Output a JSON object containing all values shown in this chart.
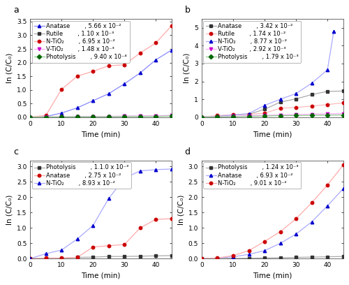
{
  "panels": [
    {
      "label": "a",
      "ylim": [
        0,
        3.6
      ],
      "yticks": [
        0.0,
        0.5,
        1.0,
        1.5,
        2.0,
        2.5,
        3.0,
        3.5
      ],
      "xlim": [
        0,
        45
      ],
      "xticks": [
        0,
        10,
        20,
        30,
        40
      ],
      "series": [
        {
          "name": "Anatase",
          "rate_str": ", 5.66 x 10⁻²",
          "mcolor": "#0000cc",
          "lcolor": "#8888ff",
          "marker": "^",
          "x": [
            0,
            5,
            10,
            15,
            20,
            25,
            30,
            35,
            40,
            45
          ],
          "y": [
            0.0,
            0.02,
            0.15,
            0.34,
            0.6,
            0.86,
            1.22,
            1.62,
            2.1,
            2.46
          ]
        },
        {
          "name": "Rutile",
          "rate_str": ", 1.10 x 10⁻³",
          "mcolor": "#333333",
          "lcolor": "#aaaaaa",
          "marker": "s",
          "x": [
            0,
            5,
            10,
            15,
            20,
            25,
            30,
            35,
            40,
            45
          ],
          "y": [
            0.0,
            0.005,
            0.01,
            0.015,
            0.02,
            0.025,
            0.03,
            0.035,
            0.04,
            0.05
          ]
        },
        {
          "name": "N-TiO₂",
          "rate_str": ", 6.95 x 10⁻²",
          "mcolor": "#cc0000",
          "lcolor": "#ffaaaa",
          "marker": "o",
          "x": [
            0,
            5,
            10,
            15,
            20,
            25,
            30,
            35,
            40,
            45
          ],
          "y": [
            0.0,
            0.06,
            1.02,
            1.5,
            1.68,
            1.88,
            1.92,
            2.35,
            2.72,
            3.35
          ]
        },
        {
          "name": "V-TiO₂",
          "rate_str": ", 1.48 x 10⁻³",
          "mcolor": "#cc00cc",
          "lcolor": "#ffaaff",
          "marker": "v",
          "x": [
            0,
            5,
            10,
            15,
            20,
            25,
            30,
            35,
            40,
            45
          ],
          "y": [
            0.0,
            0.005,
            0.01,
            0.015,
            0.02,
            0.028,
            0.035,
            0.042,
            0.05,
            0.06
          ]
        },
        {
          "name": "Photolysis",
          "rate_str": ", 9.40 x 10⁻⁴",
          "mcolor": "#006600",
          "lcolor": "#88cc88",
          "marker": "D",
          "x": [
            0,
            5,
            10,
            15,
            20,
            25,
            30,
            35,
            40,
            45
          ],
          "y": [
            0.0,
            0.002,
            0.004,
            0.006,
            0.008,
            0.012,
            0.016,
            0.02,
            0.025,
            0.04
          ]
        }
      ]
    },
    {
      "label": "b",
      "ylim": [
        0,
        5.5
      ],
      "yticks": [
        0,
        1,
        2,
        3,
        4,
        5
      ],
      "xlim": [
        0,
        45
      ],
      "xticks": [
        0,
        10,
        20,
        30,
        40
      ],
      "series": [
        {
          "name": "Anatase",
          "rate_str": ", 3.42 x 10⁻²",
          "mcolor": "#333333",
          "lcolor": "#aaaaaa",
          "marker": "s",
          "x": [
            0,
            5,
            10,
            15,
            20,
            25,
            30,
            35,
            40,
            45
          ],
          "y": [
            0.0,
            0.06,
            0.12,
            0.16,
            0.44,
            0.84,
            1.02,
            1.26,
            1.44,
            1.46
          ]
        },
        {
          "name": "Rutile",
          "rate_str": ", 1.74 x 10⁻²",
          "mcolor": "#cc0000",
          "lcolor": "#ffbbbb",
          "marker": "o",
          "x": [
            0,
            5,
            10,
            15,
            20,
            25,
            30,
            35,
            40,
            45
          ],
          "y": [
            0.0,
            0.09,
            0.13,
            0.16,
            0.22,
            0.5,
            0.54,
            0.62,
            0.7,
            0.8
          ]
        },
        {
          "name": "N-TiO₂",
          "rate_str": ", 8.77 x 10⁻²",
          "mcolor": "#0000cc",
          "lcolor": "#aaaaff",
          "marker": "^",
          "x": [
            0,
            5,
            10,
            15,
            20,
            25,
            30,
            35,
            40,
            42
          ],
          "y": [
            0.0,
            0.04,
            0.12,
            0.2,
            0.66,
            1.0,
            1.32,
            1.9,
            2.65,
            4.8
          ]
        },
        {
          "name": "V-TiO₂",
          "rate_str": ", 2.92 x 10⁻³",
          "mcolor": "#cc00cc",
          "lcolor": "#ffaaff",
          "marker": "v",
          "x": [
            0,
            5,
            10,
            15,
            20,
            25,
            30,
            35,
            40,
            45
          ],
          "y": [
            0.0,
            0.02,
            0.05,
            0.08,
            0.1,
            0.12,
            0.14,
            0.16,
            0.18,
            0.2
          ]
        },
        {
          "name": "Photolysis",
          "rate_str": ", 1.79 x 10⁻³",
          "mcolor": "#006600",
          "lcolor": "#88cc88",
          "marker": "D",
          "x": [
            0,
            5,
            10,
            15,
            20,
            25,
            30,
            35,
            40,
            45
          ],
          "y": [
            0.0,
            0.01,
            0.02,
            0.04,
            0.06,
            0.08,
            0.09,
            0.1,
            0.11,
            0.12
          ]
        }
      ]
    },
    {
      "label": "c",
      "ylim": [
        0,
        3.2
      ],
      "yticks": [
        0.0,
        0.5,
        1.0,
        1.5,
        2.0,
        2.5,
        3.0
      ],
      "xlim": [
        0,
        45
      ],
      "xticks": [
        0,
        10,
        20,
        30,
        40
      ],
      "series": [
        {
          "name": "Photolysis",
          "rate_str": ", 1.1.0 x 10⁻³",
          "mcolor": "#333333",
          "lcolor": "#aaaaaa",
          "marker": "s",
          "x": [
            0,
            5,
            10,
            15,
            20,
            25,
            30,
            35,
            40,
            45
          ],
          "y": [
            0.0,
            0.005,
            0.01,
            0.04,
            0.05,
            0.07,
            0.07,
            0.08,
            0.09,
            0.1
          ]
        },
        {
          "name": "Anatase",
          "rate_str": ", 2.75 x 10⁻²",
          "mcolor": "#cc0000",
          "lcolor": "#ffaaaa",
          "marker": "o",
          "x": [
            0,
            5,
            10,
            15,
            20,
            25,
            30,
            35,
            40,
            45
          ],
          "y": [
            0.0,
            0.02,
            0.02,
            0.04,
            0.38,
            0.42,
            0.46,
            1.0,
            1.28,
            1.3
          ]
        },
        {
          "name": "N-TiO₂",
          "rate_str": ", 8.93 x 10⁻²",
          "mcolor": "#0000cc",
          "lcolor": "#aaaaff",
          "marker": "^",
          "x": [
            0,
            5,
            10,
            15,
            20,
            25,
            30,
            35,
            40,
            45
          ],
          "y": [
            0.0,
            0.16,
            0.28,
            0.64,
            1.08,
            1.96,
            2.62,
            2.86,
            2.9,
            2.92
          ]
        }
      ]
    },
    {
      "label": "d",
      "ylim": [
        0,
        3.2
      ],
      "yticks": [
        0.0,
        0.5,
        1.0,
        1.5,
        2.0,
        2.5,
        3.0
      ],
      "xlim": [
        0,
        45
      ],
      "xticks": [
        0,
        10,
        20,
        30,
        40
      ],
      "series": [
        {
          "name": "Photolysis",
          "rate_str": ", 1.24 x 10⁻³",
          "mcolor": "#333333",
          "lcolor": "#aaaaaa",
          "marker": "s",
          "x": [
            0,
            5,
            10,
            15,
            20,
            25,
            30,
            35,
            40,
            45
          ],
          "y": [
            0.0,
            0.005,
            0.01,
            0.015,
            0.02,
            0.03,
            0.04,
            0.05,
            0.06,
            0.07
          ]
        },
        {
          "name": "Anatase",
          "rate_str": ", 6.93 x 10⁻²",
          "mcolor": "#0000cc",
          "lcolor": "#aaaaff",
          "marker": "^",
          "x": [
            0,
            5,
            10,
            15,
            20,
            25,
            30,
            35,
            40,
            45
          ],
          "y": [
            0.0,
            0.02,
            0.06,
            0.14,
            0.26,
            0.5,
            0.8,
            1.2,
            1.72,
            2.28
          ]
        },
        {
          "name": "N-TiO₂",
          "rate_str": ", 9.01 x 10⁻²",
          "mcolor": "#cc0000",
          "lcolor": "#ffaaaa",
          "marker": "o",
          "x": [
            0,
            5,
            10,
            15,
            20,
            25,
            30,
            35,
            40,
            45
          ],
          "y": [
            0.0,
            0.02,
            0.1,
            0.26,
            0.56,
            0.88,
            1.3,
            1.82,
            2.4,
            3.05
          ]
        }
      ]
    }
  ],
  "xlabel": "Time (min)",
  "ylabel_a": "ln (C/C₀)",
  "ylabel_b": "ln (C/C₀)",
  "ylabel_c": "ln (C/C₀)",
  "ylabel_d": "ln (C/C₀)",
  "bg_color": "#ffffff",
  "legend_fontsize": 6.0,
  "axis_fontsize": 7.5,
  "tick_fontsize": 6.5,
  "panel_label_fontsize": 9
}
